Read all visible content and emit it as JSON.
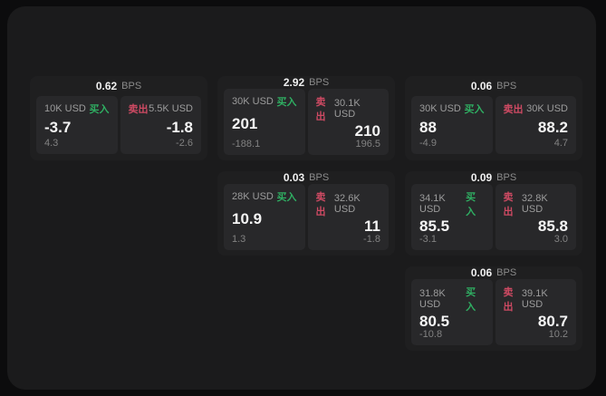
{
  "labels": {
    "bps_unit": "BPS",
    "buy": "买入",
    "sell": "卖出"
  },
  "colors": {
    "buy_green": "#2fae62",
    "sell_red": "#ce4a63",
    "outer_bg": "#0c0c0d",
    "panel_bg": "#1b1b1c",
    "card_bg": "#1f1f20",
    "tile_bg": "#28282a"
  },
  "cards": [
    {
      "bps": "0.62",
      "buy": {
        "size": "10K USD",
        "price": "-3.7",
        "change": "4.3"
      },
      "sell": {
        "size": "5.5K USD",
        "price": "-1.8",
        "change": "-2.6"
      }
    },
    {
      "bps": "2.92",
      "buy": {
        "size": "30K USD",
        "price": "201",
        "change": "-188.1"
      },
      "sell": {
        "size": "30.1K USD",
        "price": "210",
        "change": "196.5"
      }
    },
    {
      "bps": "0.06",
      "buy": {
        "size": "30K USD",
        "price": "88",
        "change": "-4.9"
      },
      "sell": {
        "size": "30K USD",
        "price": "88.2",
        "change": "4.7"
      }
    },
    {
      "bps": "0.03",
      "buy": {
        "size": "28K USD",
        "price": "10.9",
        "change": "1.3"
      },
      "sell": {
        "size": "32.6K USD",
        "price": "11",
        "change": "-1.8"
      }
    },
    {
      "bps": "0.09",
      "buy": {
        "size": "34.1K USD",
        "price": "85.5",
        "change": "-3.1"
      },
      "sell": {
        "size": "32.8K USD",
        "price": "85.8",
        "change": "3.0"
      }
    },
    {
      "bps": "0.06",
      "buy": {
        "size": "31.8K USD",
        "price": "80.5",
        "change": "-10.8"
      },
      "sell": {
        "size": "39.1K USD",
        "price": "80.7",
        "change": "10.2"
      }
    }
  ]
}
